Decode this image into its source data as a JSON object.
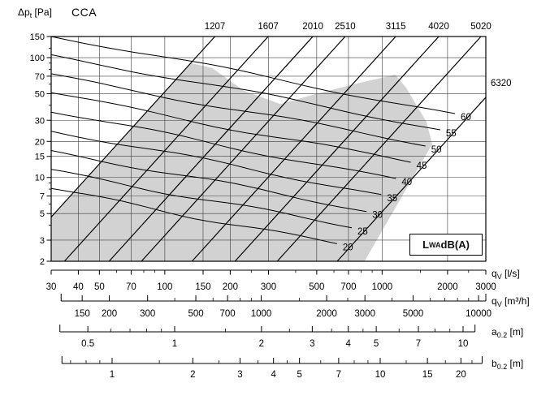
{
  "header": {
    "pressure_axis_label": {
      "base": "Δp",
      "sub": "t",
      "unit": " [Pa]"
    },
    "product_code": "CCA"
  },
  "lwa_legend": {
    "base": "L",
    "sub": "WA",
    "unit": " dB(A)"
  },
  "axis_unit_labels": {
    "qv_ls": {
      "base": "q",
      "sub": "V",
      "unit": " [l/s]"
    },
    "qv_m3h": {
      "base": "q",
      "sub": "V",
      "unit": " [m³/h]"
    },
    "a02": {
      "base": "a",
      "sub": "0.2",
      "unit": " [m]"
    },
    "b02": {
      "base": "b",
      "sub": "0.2",
      "unit": " [m]"
    }
  },
  "chart_data": {
    "type": "line",
    "title": "CCA",
    "scale_type": "log-log",
    "x_axis": {
      "label": "qV [l/s]",
      "range": [
        30,
        3000
      ],
      "ticks": [
        30,
        40,
        50,
        70,
        100,
        150,
        200,
        300,
        500,
        700,
        1000,
        2000,
        3000
      ],
      "minor_ticks": [
        60,
        80,
        90,
        250,
        400,
        600,
        800,
        900,
        1500,
        2500
      ]
    },
    "y_axis": {
      "label": "Δpt [Pa]",
      "range": [
        2,
        150
      ],
      "ticks": [
        2,
        3,
        5,
        7,
        10,
        15,
        20,
        30,
        50,
        70,
        100,
        150
      ],
      "minor_ticks": [
        4,
        6,
        8,
        9,
        40,
        60,
        80,
        90,
        120
      ]
    },
    "size_lines": {
      "slope_decades_per_decade": 2,
      "series": [
        {
          "label": "1207",
          "q_at_150Pa": 170
        },
        {
          "label": "1607",
          "q_at_150Pa": 299
        },
        {
          "label": "2010",
          "q_at_150Pa": 480
        },
        {
          "label": "2510",
          "q_at_150Pa": 676
        },
        {
          "label": "3115",
          "q_at_150Pa": 1155
        },
        {
          "label": "4020",
          "q_at_150Pa": 1822
        },
        {
          "label": "5020",
          "q_at_150Pa": 2850
        },
        {
          "label": "6320",
          "q_at_150Pa": 5380
        }
      ]
    },
    "lwa_lines": {
      "unit": "dB(A)",
      "slope_decades_per_decade": -0.35,
      "series": [
        {
          "value": 20,
          "q_end": 620,
          "p_end": 2.8,
          "p_at_30ls": 8.1
        },
        {
          "value": 25,
          "q_end": 725,
          "p_end": 3.8,
          "p_at_30ls": 11.7
        },
        {
          "value": 30,
          "q_end": 848,
          "p_end": 5.2,
          "p_at_30ls": 16.8
        },
        {
          "value": 35,
          "q_end": 991,
          "p_end": 7.2,
          "p_at_30ls": 24.3
        },
        {
          "value": 40,
          "q_end": 1158,
          "p_end": 9.8,
          "p_at_30ls": 35.1
        },
        {
          "value": 45,
          "q_end": 1354,
          "p_end": 13.4,
          "p_at_30ls": 50.9
        },
        {
          "value": 50,
          "q_end": 1583,
          "p_end": 18.3,
          "p_at_30ls": 73.3
        },
        {
          "value": 55,
          "q_end": 1851,
          "p_end": 25.0,
          "p_at_30ls": 105.8
        },
        {
          "value": 60,
          "q_end": 2164,
          "p_end": 34.1,
          "p_at_30ls": 152.0
        }
      ]
    },
    "envelope_q_p": [
      [
        30,
        2
      ],
      [
        30,
        4.6
      ],
      [
        132,
        90
      ],
      [
        165,
        82
      ],
      [
        231,
        53
      ],
      [
        340,
        41
      ],
      [
        500,
        50
      ],
      [
        800,
        62
      ],
      [
        1150,
        72
      ],
      [
        1290,
        56
      ],
      [
        1600,
        29
      ],
      [
        1700,
        19
      ],
      [
        830,
        2
      ]
    ],
    "secondary_scales": [
      {
        "id": "qv_m3h",
        "label": "qV [m³/h]",
        "range": [
          120,
          10800
        ],
        "labeled_ticks": [
          150,
          200,
          300,
          500,
          700,
          1000,
          2000,
          3000,
          5000,
          10000
        ],
        "minor_ticks": [
          400,
          600,
          800,
          900,
          1500,
          2500,
          4000,
          6000,
          7000,
          8000,
          9000
        ]
      },
      {
        "id": "a02",
        "label": "a0.2 [m]",
        "range": [
          0.4,
          11
        ],
        "labeled_ticks": [
          0.5,
          1,
          2,
          3,
          4,
          5,
          7,
          10
        ],
        "minor_ticks": [
          0.6,
          0.7,
          0.8,
          0.9,
          1.5,
          2.5,
          3.5,
          4.5,
          6,
          8,
          9
        ]
      },
      {
        "id": "b02",
        "label": "b0.2 [m]",
        "range": [
          0.65,
          24
        ],
        "labeled_ticks": [
          1,
          2,
          3,
          4,
          5,
          7,
          10,
          15,
          20
        ],
        "minor_ticks": [
          0.7,
          0.8,
          0.9,
          1.5,
          2.5,
          3.5,
          4.5,
          6,
          8,
          9,
          12.5,
          17.5,
          22
        ]
      }
    ],
    "colors": {
      "envelope_fill": "#d2d2d2",
      "grid": "#3c3c3c",
      "line": "#000000"
    }
  }
}
